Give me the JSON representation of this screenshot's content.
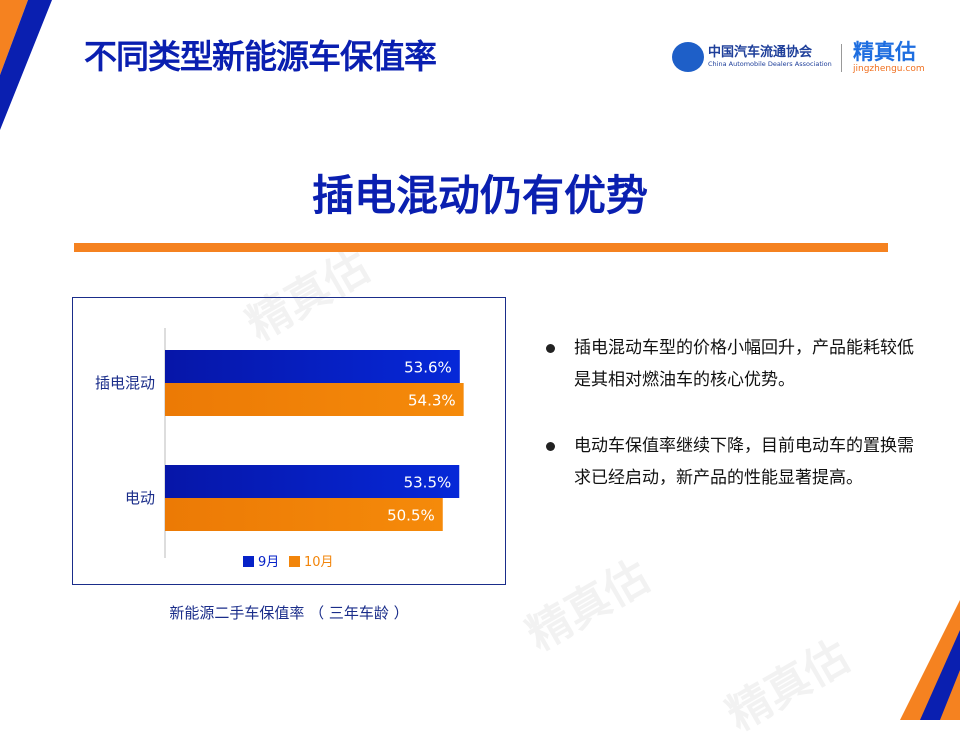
{
  "header": {
    "title": "不同类型新能源车保值率",
    "logos": {
      "association_cn": "中国汽车流通协会",
      "association_en": "China Automobile Dealers Association",
      "association_mark": "CADA",
      "brand_cn": "精真估",
      "brand_url": "jingzhengu.com"
    }
  },
  "headline": "插电混动仍有优势",
  "colors": {
    "primary": "#0a1fb0",
    "accent": "#f58220",
    "series_sep": "#0622c8",
    "series_oct": "#f2850a"
  },
  "chart_data": {
    "type": "bar",
    "orientation": "horizontal",
    "categories": [
      "插电混动",
      "电动"
    ],
    "series": [
      {
        "name": "9月",
        "values": [
          53.6,
          53.5
        ],
        "labels": [
          "53.6%",
          "53.5%"
        ]
      },
      {
        "name": "10月",
        "values": [
          54.3,
          50.5
        ],
        "labels": [
          "54.3%",
          "50.5%"
        ]
      }
    ],
    "xlim": [
      0,
      60
    ],
    "unit": "%",
    "grid": false,
    "legend": "bottom",
    "caption": "新能源二手车保值率  （ 三年车龄 ）"
  },
  "bullets": [
    "插电混动车型的价格小幅回升，产品能耗较低是其相对燃油车的核心优势。",
    "电动车保值率继续下降，目前电动车的置换需求已经启动，新产品的性能显著提高。"
  ]
}
